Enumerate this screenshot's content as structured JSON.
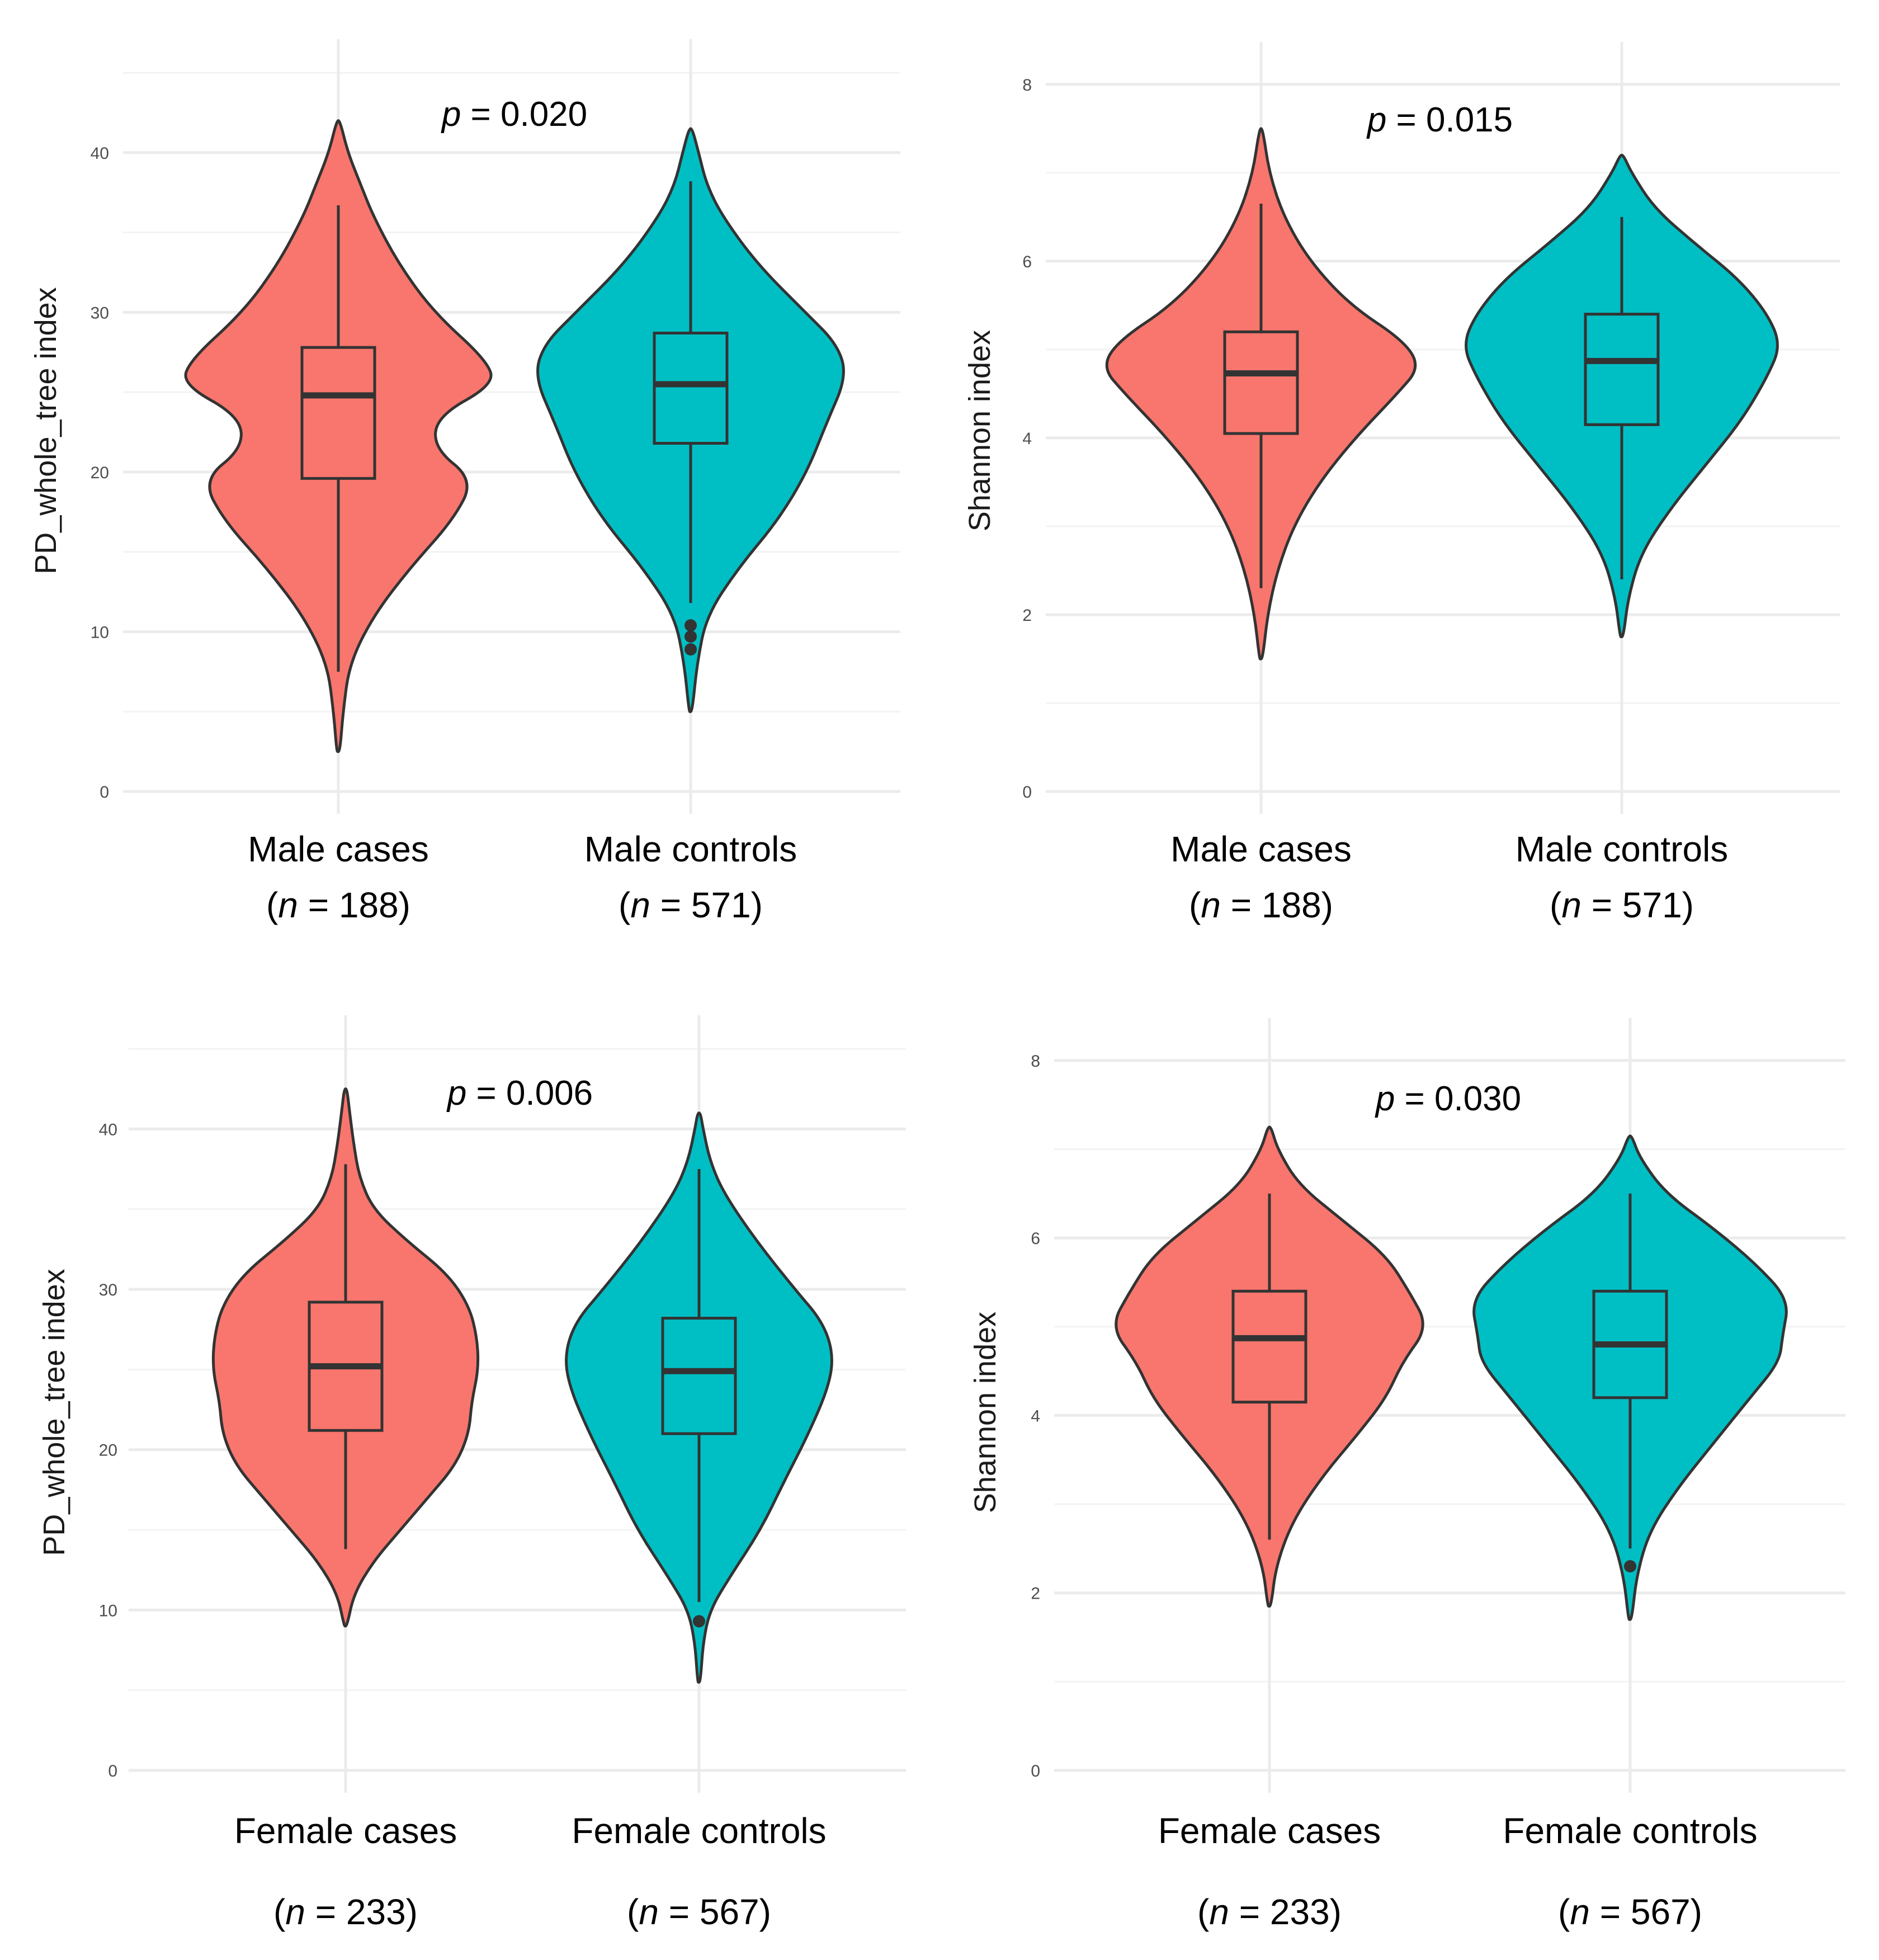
{
  "chart_data": [
    {
      "type": "violin",
      "ylabel": "PD_whole_tree index",
      "ylim": [
        0,
        45
      ],
      "yticks": [
        0,
        10,
        20,
        30,
        40
      ],
      "p_prefix": "p",
      "p_text": " = 0.020",
      "colors": [
        "#F8766D",
        "#00BFC4"
      ],
      "groups": [
        {
          "label": "Male cases",
          "n_prefix": "(",
          "n_italic": "n",
          "n_suffix": " = 188)",
          "min": 2.5,
          "max": 42,
          "lower_whisker": 7.5,
          "q1": 19.6,
          "median": 24.8,
          "q3": 27.8,
          "upper_whisker": 36.7,
          "outliers": [],
          "density": [
            [
              2.5,
              0.01
            ],
            [
              5,
              0.03
            ],
            [
              8,
              0.07
            ],
            [
              11,
              0.22
            ],
            [
              14,
              0.45
            ],
            [
              17,
              0.72
            ],
            [
              19.5,
              0.85
            ],
            [
              21.5,
              0.6
            ],
            [
              23.5,
              0.62
            ],
            [
              25.5,
              0.98
            ],
            [
              27,
              0.93
            ],
            [
              30,
              0.6
            ],
            [
              33,
              0.38
            ],
            [
              36,
              0.22
            ],
            [
              38,
              0.14
            ],
            [
              40,
              0.06
            ],
            [
              42,
              0.01
            ]
          ]
        },
        {
          "label": "Male controls",
          "n_prefix": "(",
          "n_italic": "n",
          "n_suffix": " = 571)",
          "min": 5,
          "max": 41.5,
          "lower_whisker": 11.8,
          "q1": 21.8,
          "median": 25.5,
          "q3": 28.7,
          "upper_whisker": 38.2,
          "outliers": [
            8.9,
            9.7,
            10.4
          ],
          "density": [
            [
              5,
              0.01
            ],
            [
              8,
              0.04
            ],
            [
              11,
              0.1
            ],
            [
              14,
              0.3
            ],
            [
              17,
              0.55
            ],
            [
              20,
              0.73
            ],
            [
              23,
              0.85
            ],
            [
              26,
              0.98
            ],
            [
              28,
              0.92
            ],
            [
              30,
              0.72
            ],
            [
              33,
              0.42
            ],
            [
              36,
              0.2
            ],
            [
              38,
              0.1
            ],
            [
              40,
              0.05
            ],
            [
              41.5,
              0.01
            ]
          ]
        }
      ]
    },
    {
      "type": "violin",
      "ylabel": "Shannon index",
      "ylim": [
        0,
        8.1
      ],
      "yticks": [
        0,
        2,
        4,
        6,
        8
      ],
      "p_prefix": "p",
      "p_text": " = 0.015",
      "colors": [
        "#F8766D",
        "#00BFC4"
      ],
      "groups": [
        {
          "label": "Male cases",
          "n_prefix": "(",
          "n_italic": "n",
          "n_suffix": " = 188)",
          "min": 1.5,
          "max": 7.5,
          "lower_whisker": 2.3,
          "q1": 4.05,
          "median": 4.73,
          "q3": 5.2,
          "upper_whisker": 6.65,
          "outliers": [],
          "density": [
            [
              1.5,
              0.01
            ],
            [
              2,
              0.04
            ],
            [
              2.5,
              0.1
            ],
            [
              3,
              0.2
            ],
            [
              3.5,
              0.36
            ],
            [
              4,
              0.58
            ],
            [
              4.5,
              0.84
            ],
            [
              4.8,
              0.98
            ],
            [
              5.1,
              0.88
            ],
            [
              5.5,
              0.55
            ],
            [
              6,
              0.3
            ],
            [
              6.5,
              0.14
            ],
            [
              7,
              0.05
            ],
            [
              7.5,
              0.01
            ]
          ]
        },
        {
          "label": "Male controls",
          "n_prefix": "(",
          "n_italic": "n",
          "n_suffix": " = 571)",
          "min": 1.75,
          "max": 7.2,
          "lower_whisker": 2.4,
          "q1": 4.15,
          "median": 4.87,
          "q3": 5.4,
          "upper_whisker": 6.5,
          "outliers": [],
          "density": [
            [
              1.75,
              0.01
            ],
            [
              2.2,
              0.04
            ],
            [
              2.7,
              0.12
            ],
            [
              3.2,
              0.3
            ],
            [
              3.7,
              0.52
            ],
            [
              4.2,
              0.74
            ],
            [
              4.7,
              0.9
            ],
            [
              5.05,
              0.98
            ],
            [
              5.4,
              0.9
            ],
            [
              5.8,
              0.72
            ],
            [
              6.2,
              0.45
            ],
            [
              6.6,
              0.2
            ],
            [
              7,
              0.06
            ],
            [
              7.2,
              0.01
            ]
          ]
        }
      ]
    },
    {
      "type": "violin",
      "ylabel": "PD_whole_tree index",
      "ylim": [
        0,
        45
      ],
      "yticks": [
        0,
        10,
        20,
        30,
        40
      ],
      "p_prefix": "p",
      "p_text": " = 0.006",
      "colors": [
        "#F8766D",
        "#00BFC4"
      ],
      "groups": [
        {
          "label": "Female cases",
          "n_prefix": "(",
          "n_italic": "n",
          "n_suffix": " = 233)",
          "min": 9,
          "max": 42.5,
          "lower_whisker": 13.8,
          "q1": 21.2,
          "median": 25.2,
          "q3": 29.2,
          "upper_whisker": 37.8,
          "outliers": [],
          "density": [
            [
              9,
              0.01
            ],
            [
              11,
              0.06
            ],
            [
              13,
              0.2
            ],
            [
              15,
              0.4
            ],
            [
              17,
              0.6
            ],
            [
              19,
              0.8
            ],
            [
              21,
              0.9
            ],
            [
              23,
              0.92
            ],
            [
              25,
              0.97
            ],
            [
              27,
              0.96
            ],
            [
              29,
              0.9
            ],
            [
              31,
              0.74
            ],
            [
              33,
              0.45
            ],
            [
              35,
              0.2
            ],
            [
              37,
              0.1
            ],
            [
              39,
              0.06
            ],
            [
              41,
              0.03
            ],
            [
              42.5,
              0.01
            ]
          ]
        },
        {
          "label": "Female controls",
          "n_prefix": "(",
          "n_italic": "n",
          "n_suffix": " = 567)",
          "min": 5.5,
          "max": 41,
          "lower_whisker": 10.5,
          "q1": 21.0,
          "median": 24.9,
          "q3": 28.2,
          "upper_whisker": 37.5,
          "outliers": [
            9.3
          ],
          "density": [
            [
              5.5,
              0.01
            ],
            [
              8,
              0.03
            ],
            [
              10,
              0.08
            ],
            [
              12,
              0.22
            ],
            [
              15,
              0.45
            ],
            [
              18,
              0.62
            ],
            [
              21,
              0.8
            ],
            [
              24,
              0.95
            ],
            [
              26,
              0.98
            ],
            [
              28,
              0.9
            ],
            [
              30,
              0.7
            ],
            [
              33,
              0.42
            ],
            [
              36,
              0.18
            ],
            [
              38,
              0.08
            ],
            [
              40,
              0.03
            ],
            [
              41,
              0.01
            ]
          ]
        }
      ]
    },
    {
      "type": "violin",
      "ylabel": "Shannon index",
      "ylim": [
        0,
        8.1
      ],
      "yticks": [
        0,
        2,
        4,
        6,
        8
      ],
      "p_prefix": "p",
      "p_text": " = 0.030",
      "colors": [
        "#F8766D",
        "#00BFC4"
      ],
      "groups": [
        {
          "label": "Female cases",
          "n_prefix": "(",
          "n_italic": "n",
          "n_suffix": " = 233)",
          "min": 1.85,
          "max": 7.25,
          "lower_whisker": 2.6,
          "q1": 4.15,
          "median": 4.87,
          "q3": 5.4,
          "upper_whisker": 6.5,
          "outliers": [],
          "density": [
            [
              1.85,
              0.01
            ],
            [
              2.3,
              0.04
            ],
            [
              2.8,
              0.14
            ],
            [
              3.3,
              0.32
            ],
            [
              3.8,
              0.55
            ],
            [
              4.2,
              0.72
            ],
            [
              4.6,
              0.82
            ],
            [
              5,
              0.98
            ],
            [
              5.4,
              0.86
            ],
            [
              5.8,
              0.72
            ],
            [
              6.2,
              0.45
            ],
            [
              6.6,
              0.18
            ],
            [
              7,
              0.05
            ],
            [
              7.25,
              0.01
            ]
          ]
        },
        {
          "label": "Female controls",
          "n_prefix": "(",
          "n_italic": "n",
          "n_suffix": " = 567)",
          "min": 1.7,
          "max": 7.15,
          "lower_whisker": 2.5,
          "q1": 4.2,
          "median": 4.8,
          "q3": 5.4,
          "upper_whisker": 6.5,
          "outliers": [
            2.3
          ],
          "density": [
            [
              1.7,
              0.01
            ],
            [
              2.2,
              0.04
            ],
            [
              2.7,
              0.12
            ],
            [
              3.2,
              0.3
            ],
            [
              3.7,
              0.52
            ],
            [
              4.2,
              0.74
            ],
            [
              4.6,
              0.92
            ],
            [
              4.9,
              0.94
            ],
            [
              5.3,
              0.98
            ],
            [
              5.7,
              0.78
            ],
            [
              6.1,
              0.52
            ],
            [
              6.5,
              0.22
            ],
            [
              6.9,
              0.06
            ],
            [
              7.15,
              0.01
            ]
          ]
        }
      ]
    }
  ]
}
